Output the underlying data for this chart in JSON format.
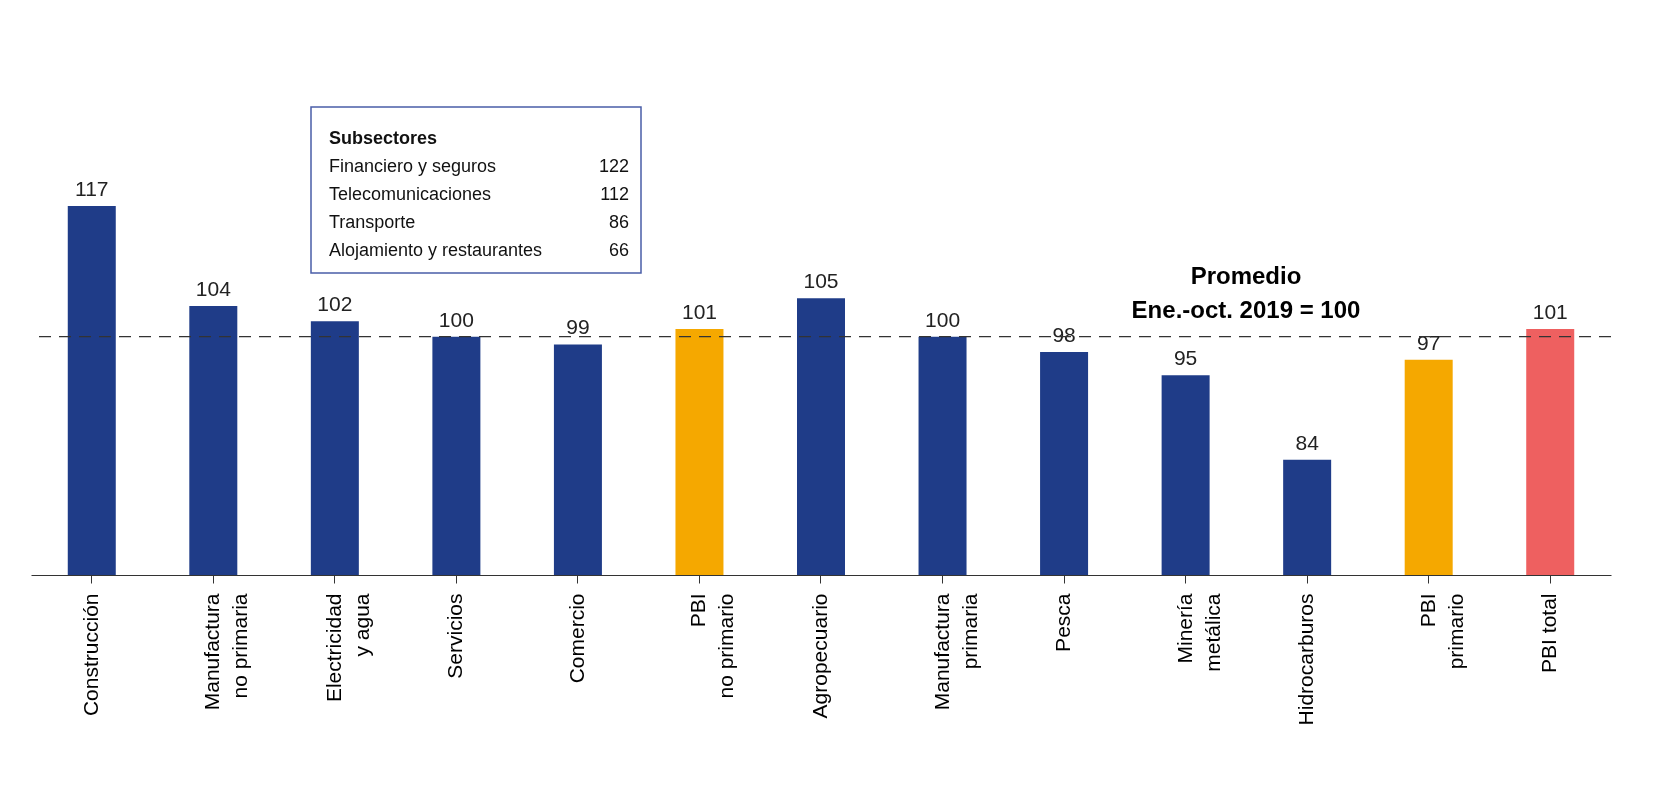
{
  "chart_data": {
    "type": "bar",
    "categories": [
      "Construcción",
      "Manufactura\nno primaria",
      "Electricidad\ny agua",
      "Servicios",
      "Comercio",
      "PBI\nno primario",
      "Agropecuario",
      "Manufactura\nprimaria",
      "Pesca",
      "Minería\nmetálica",
      "Hidrocarburos",
      "PBI\nprimario",
      "PBI total"
    ],
    "values": [
      117,
      104,
      102,
      100,
      99,
      101,
      105,
      100,
      98,
      95,
      84,
      97,
      101
    ],
    "colors": [
      "#1f3c88",
      "#1f3c88",
      "#1f3c88",
      "#1f3c88",
      "#1f3c88",
      "#f5a800",
      "#1f3c88",
      "#1f3c88",
      "#1f3c88",
      "#1f3c88",
      "#1f3c88",
      "#f5a800",
      "#ee6060"
    ],
    "ylim": [
      69,
      117
    ],
    "tick_labels": "x",
    "grid": false,
    "data_labels": true,
    "ref_lines": [
      {
        "axis": "y",
        "value": 100,
        "label": "Promedio\nEne.-oct. 2019 = 100",
        "color": "#333333",
        "line_style": "dashed"
      }
    ],
    "annotations": [
      "Subsectores",
      "Financiero y seguros 122",
      "Telecomunicaciones 112",
      "Transporte 86",
      "Alojamiento y restaurantes 66"
    ]
  }
}
